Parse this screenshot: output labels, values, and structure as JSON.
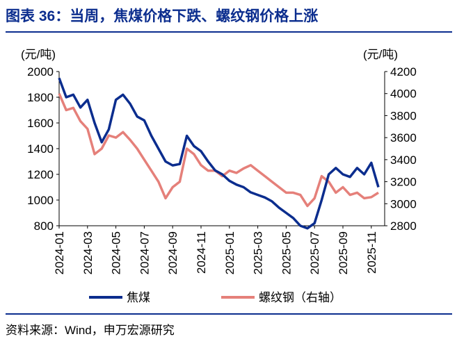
{
  "title": "图表 36：当周，焦煤价格下跌、螺纹钢价格上涨",
  "source": "资料来源：Wind，申万宏源研究",
  "chart_data": {
    "type": "line",
    "y_label": "(元/吨)",
    "y2_label": "(元/吨)",
    "categories": [
      "2024-01",
      null,
      null,
      null,
      "2024-03",
      null,
      null,
      null,
      "2024-05",
      null,
      null,
      null,
      "2024-07",
      null,
      null,
      null,
      "2024-09",
      null,
      null,
      null,
      "2024-11",
      null,
      null,
      null,
      "2025-01",
      null,
      null,
      null,
      "2025-03",
      null,
      null,
      null,
      "2025-05",
      null,
      null,
      null,
      "2025-07",
      null,
      null,
      null,
      "2025-09",
      null,
      null,
      null,
      "2025-11",
      null
    ],
    "series": [
      {
        "name": "焦煤",
        "color": "#0b2d8e",
        "axis": "y",
        "values": [
          1950,
          1800,
          1820,
          1720,
          1780,
          1600,
          1450,
          1550,
          1780,
          1820,
          1750,
          1650,
          1620,
          1500,
          1400,
          1300,
          1270,
          1280,
          1500,
          1420,
          1380,
          1300,
          1230,
          1200,
          1150,
          1120,
          1100,
          1060,
          1040,
          1020,
          990,
          940,
          900,
          860,
          800,
          780,
          820,
          1000,
          1200,
          1250,
          1200,
          1180,
          1250,
          1200,
          1290,
          1100
        ]
      },
      {
        "name": "螺纹钢（右轴）",
        "color": "#e5807a",
        "axis": "y2",
        "values": [
          4000,
          3850,
          3870,
          3750,
          3680,
          3450,
          3500,
          3620,
          3600,
          3650,
          3580,
          3500,
          3400,
          3300,
          3200,
          3050,
          3150,
          3200,
          3500,
          3450,
          3350,
          3300,
          3300,
          3250,
          3300,
          3280,
          3320,
          3350,
          3300,
          3250,
          3200,
          3150,
          3100,
          3100,
          3080,
          2980,
          3050,
          3250,
          3200,
          3100,
          3150,
          3080,
          3100,
          3050,
          3060,
          3100
        ]
      }
    ],
    "ylim": [
      800,
      2000
    ],
    "yticks": [
      800,
      1000,
      1200,
      1400,
      1600,
      1800,
      2000
    ],
    "y2lim": [
      2800,
      4200
    ],
    "y2ticks": [
      2800,
      3000,
      3200,
      3400,
      3600,
      3800,
      4000,
      4200
    ]
  }
}
